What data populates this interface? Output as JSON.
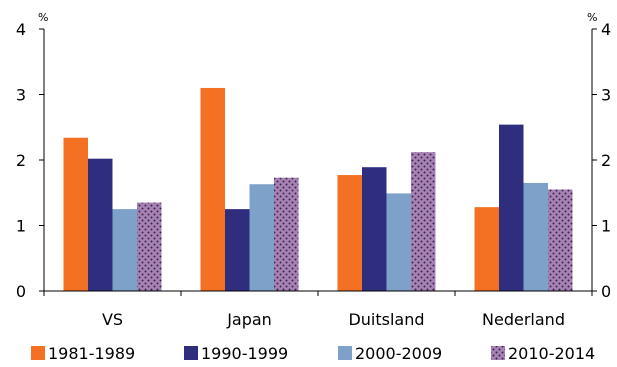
{
  "chart_data": {
    "type": "bar",
    "categories": [
      "VS",
      "Japan",
      "Duitsland",
      "Nederland"
    ],
    "series": [
      {
        "name": "1981-1989",
        "color": "#f47023",
        "pattern": "solid",
        "values": [
          2.34,
          3.1,
          1.77,
          1.28
        ]
      },
      {
        "name": "1990-1999",
        "color": "#2e2d7e",
        "pattern": "solid",
        "values": [
          2.02,
          1.25,
          1.89,
          2.54
        ]
      },
      {
        "name": "2000-2009",
        "color": "#7ea1c9",
        "pattern": "solid",
        "values": [
          1.25,
          1.63,
          1.49,
          1.65
        ]
      },
      {
        "name": "2010-2014",
        "color": "#a783b3",
        "pattern": "dotted",
        "values": [
          1.35,
          1.73,
          2.12,
          1.55
        ]
      }
    ],
    "ylim": [
      0,
      4
    ],
    "yticks": [
      "0",
      "1",
      "2",
      "3",
      "4"
    ],
    "ylabel_left": "%",
    "ylabel_right": "%",
    "legend_position": "bottom",
    "grid": false
  }
}
